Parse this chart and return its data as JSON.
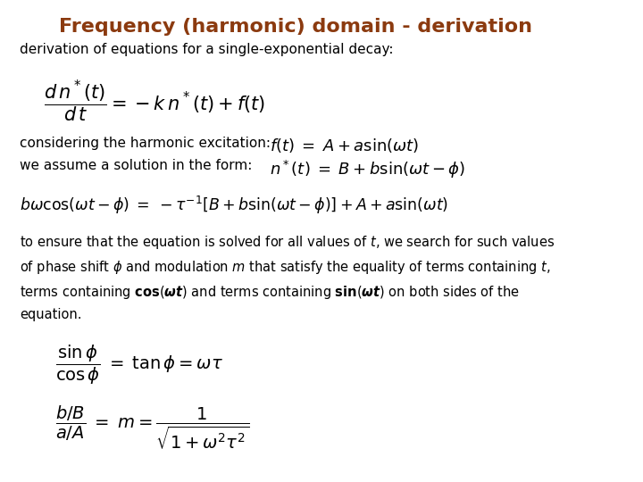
{
  "title": "Frequency (harmonic) domain - derivation",
  "title_color": "#8B3A0F",
  "title_fontsize": 16,
  "bg_color": "#FFFFFF",
  "text_color": "#000000",
  "eq_color": "#000000",
  "body_fontsize": 11,
  "line1": "derivation of equations for a single-exponential decay:",
  "line2_text": "considering the harmonic excitation:",
  "line3_text": "we assume a solution in the form:",
  "para_line4": "equation."
}
